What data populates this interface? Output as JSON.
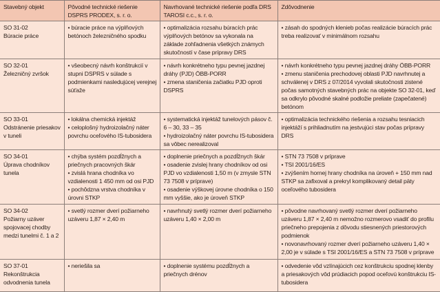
{
  "headers": [
    "Stavebný objekt",
    "Pôvodné technické riešenie DSPRS PRODEX, s. r. o.",
    "Navrhované technické riešenie podľa DRS TAROSI c.c., s. r. o.",
    "Zdôvodnenie"
  ],
  "rows": [
    {
      "object": [
        "SO 31-02",
        "Búracie práce"
      ],
      "original": [
        "• búracie práce na výplňových betónoch železničného spodku"
      ],
      "proposed": [
        "• optimalizácia rozsahu búracích prác výplňových betónov sa vykonala na základe zohľadnenia všetkých známych skutočností v čase prípravy DRS"
      ],
      "reason": [
        "• zásah do spodných klenieb počas realizácie búracích prác treba realizovať v minimálnom rozsahu"
      ]
    },
    {
      "object": [
        "SO 32-01",
        "Železničný zvršok"
      ],
      "original": [
        "• všeobecný návrh konštrukcií v stupni DSPRS v súlade s podmienkami nasledujúcej verejnej súťaže"
      ],
      "proposed": [
        "• návrh konkrétneho typu pevnej jazdnej dráhy (PJD) ÖBB-PORR",
        "• zmena staničenia začiatku PJD oproti DSPRS"
      ],
      "reason": [
        "• návrh konkrétneho typu pevnej jazdnej dráhy ÖBB-PORR",
        "• zmenu staničenia prechodovej oblasti PJD navrhnutej a schválenej v DRS z 07/2014 vyvolali skutočnosti zistené počas samotných stavebných prác na objekte SO 32-01, keď sa odkrylo pôvodné skalné podložie preliate (zapečatené) betónom"
      ]
    },
    {
      "object": [
        "SO 33-01",
        "Odstránenie priesakov v tuneli"
      ],
      "original": [
        "• lokálna chemická injektáž",
        "• celoplošný hydroizolačný náter povrchu oceľového IS-tubosidera"
      ],
      "proposed": [
        "• systematická injektáž tunelových pásov č. 6 – 30, 33 – 35",
        "• hydroizolačný náter povrchu IS-tubosidera sa vôbec nerealizoval"
      ],
      "reason": [
        "• optimalizácia technického riešenia a rozsahu tesniacich injektáží s prihliadnutím na jestvujúci stav počas prípravy DRS"
      ]
    },
    {
      "object": [
        "SO 34-01",
        "Úprava chodníkov tunela"
      ],
      "original": [
        "• chýba systém pozdĺžnych a priečnych pracovných škár",
        "• zvislá hrana chodníka vo vzdialenosti 1 450 mm od osi PJD",
        "• pochôdzna vrstva chodníka v úrovni STKP"
      ],
      "proposed": [
        "• doplnenie priečnych a pozdĺžnych škár",
        "• osadenie zvislej hrany chodníkov od osi PJD vo vzdialenosti 1,50 m (v zmysle STN 73 7508 v príprave)",
        "• osadenie výškovej úrovne chodníka o 150 mm vyššie, ako je úroveň STKP"
      ],
      "reason": [
        "• STN 73 7508 v príprave",
        "• TSI 2001/16/ES",
        "• zvýšením hornej hrany chodníka na úroveň + 150 mm nad STKP sa zafixoval a prekryl komplikovaný detail päty oceľového tubosidera"
      ]
    },
    {
      "object": [
        "SO 34-02",
        "Požiarny uzáver spojovacej chodby medzi tunelmi č. 1 a 2"
      ],
      "original": [
        "• svetlý rozmer dverí požiarneho uzáveru 1,87 × 2,40 m"
      ],
      "proposed": [
        "• navrhnutý svetlý rozmer dverí požiarneho uzáveru 1,40 × 2,00 m"
      ],
      "reason": [
        "• pôvodne navrhovaný svetlý rozmer dverí požiarneho uzáveru 1,87 × 2,40 m nemožno rozmerovo vsadiť do profilu priečneho prepojenia z dôvodu stiesnených priestorových podmienok",
        "• novonavrhovaný rozmer dverí požiarneho uzáveru 1,40 × 2,00 je v súlade s TSI 2001/16/ES a STN 73 7508 v príprave"
      ]
    },
    {
      "object": [
        "SO 37-01",
        "Rekonštrukcia odvodnenia tunela"
      ],
      "original": [
        "• neriešila sa"
      ],
      "proposed": [
        "• doplnenie systému pozdĺžnych a priečnych drénov"
      ],
      "reason": [
        "• odvedenie vôd vzlínajúcich cez konštrukciu spodnej klenby a priesakových vôd prúdiacich popod oceľovú konštrukciu IS-tubosidera"
      ]
    }
  ]
}
